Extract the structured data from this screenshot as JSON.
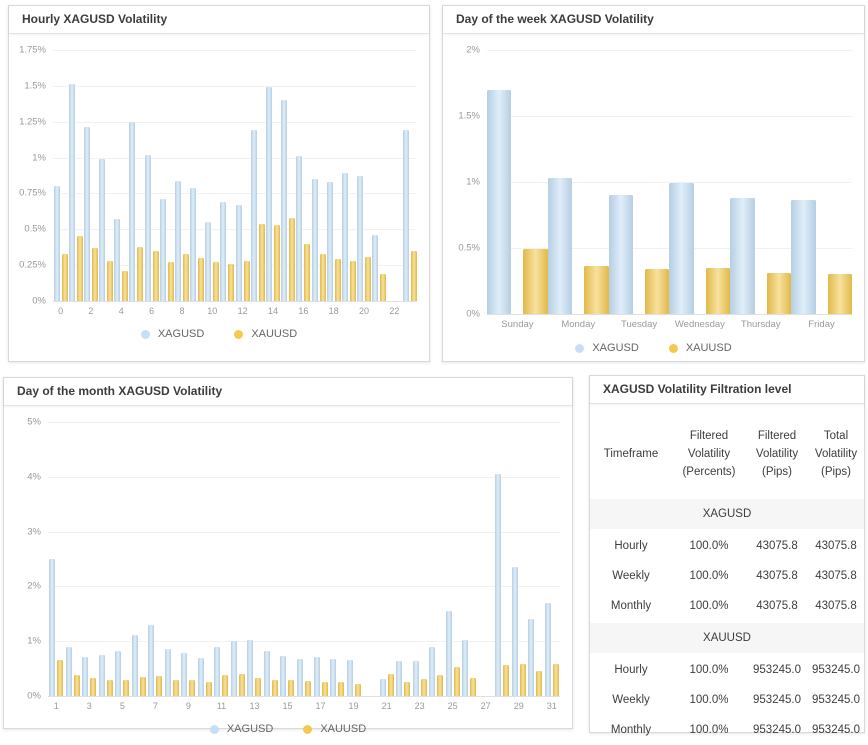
{
  "panels": {
    "hourly": {
      "title": "Hourly XAGUSD Volatility"
    },
    "weekday": {
      "title": "Day of the week XAGUSD Volatility"
    },
    "monthday": {
      "title": "Day of the month XAGUSD Volatility"
    },
    "table": {
      "title": "XAGUSD Volatility Filtration level"
    }
  },
  "colors": {
    "xagusd_bar": "#c5e0f6",
    "xauusd_bar": "#f3c94f",
    "gridline": "#f1f1f1",
    "axis_text": "#999999"
  },
  "chart_data": [
    {
      "type": "bar",
      "title": "Hourly XAGUSD Volatility",
      "categories": [
        "0",
        "1",
        "2",
        "3",
        "4",
        "5",
        "6",
        "7",
        "8",
        "9",
        "10",
        "11",
        "12",
        "13",
        "14",
        "15",
        "16",
        "17",
        "18",
        "19",
        "20",
        "21",
        "22",
        "23"
      ],
      "x_tick_interval": 2,
      "ylim": [
        0,
        1.75
      ],
      "y_ticks": [
        "1.75%",
        "1.5%",
        "1.25%",
        "1%",
        "0.75%",
        "0.5%",
        "0.25%",
        "0%"
      ],
      "grid": true,
      "legend_position": "bottom",
      "series": [
        {
          "name": "XAGUSD",
          "color": "#c5e0f6",
          "values": [
            0.8,
            1.51,
            1.21,
            0.99,
            0.57,
            1.25,
            1.02,
            0.71,
            0.84,
            0.79,
            0.55,
            0.69,
            0.67,
            1.19,
            1.49,
            1.4,
            1.01,
            0.85,
            0.83,
            0.89,
            0.87,
            0.46,
            0,
            1.19
          ]
        },
        {
          "name": "XAUUSD",
          "color": "#f3c94f",
          "values": [
            0.33,
            0.45,
            0.37,
            0.28,
            0.21,
            0.38,
            0.35,
            0.27,
            0.33,
            0.3,
            0.27,
            0.26,
            0.28,
            0.54,
            0.53,
            0.58,
            0.4,
            0.33,
            0.29,
            0.28,
            0.31,
            0.19,
            0,
            0.35
          ]
        }
      ]
    },
    {
      "type": "bar",
      "title": "Day of the week XAGUSD Volatility",
      "categories": [
        "Sunday",
        "Monday",
        "Tuesday",
        "Wednesday",
        "Thursday",
        "Friday"
      ],
      "x_tick_interval": 1,
      "ylim": [
        0,
        2
      ],
      "y_ticks": [
        "2%",
        "1.5%",
        "1%",
        "0.5%",
        "0%"
      ],
      "grid": true,
      "legend_position": "bottom",
      "series": [
        {
          "name": "XAGUSD",
          "color": "#c5e0f6",
          "values": [
            1.7,
            1.03,
            0.9,
            0.99,
            0.88,
            0.86
          ]
        },
        {
          "name": "XAUUSD",
          "color": "#f3c94f",
          "values": [
            0.49,
            0.36,
            0.34,
            0.35,
            0.31,
            0.3
          ]
        }
      ]
    },
    {
      "type": "bar",
      "title": "Day of the month XAGUSD Volatility",
      "categories": [
        "1",
        "2",
        "3",
        "4",
        "5",
        "6",
        "7",
        "8",
        "9",
        "10",
        "11",
        "12",
        "13",
        "14",
        "15",
        "16",
        "17",
        "18",
        "19",
        "20",
        "21",
        "22",
        "23",
        "24",
        "25",
        "26",
        "27",
        "28",
        "29",
        "30",
        "31"
      ],
      "x_tick_interval": 2,
      "ylim": [
        0,
        5
      ],
      "y_ticks": [
        "5%",
        "4%",
        "3%",
        "2%",
        "1%",
        "0%"
      ],
      "grid": true,
      "legend_position": "bottom",
      "series": [
        {
          "name": "XAGUSD",
          "color": "#c5e0f6",
          "values": [
            2.5,
            0.9,
            0.72,
            0.75,
            0.82,
            1.12,
            1.3,
            0.85,
            0.78,
            0.7,
            0.9,
            1.0,
            1.03,
            0.83,
            0.73,
            0.68,
            0.72,
            0.68,
            0.66,
            0,
            0.31,
            0.64,
            0.64,
            0.89,
            1.55,
            1.03,
            0,
            4.05,
            2.35,
            1.4,
            1.7
          ]
        },
        {
          "name": "XAUUSD",
          "color": "#f3c94f",
          "values": [
            0.65,
            0.38,
            0.33,
            0.3,
            0.3,
            0.35,
            0.37,
            0.3,
            0.29,
            0.26,
            0.38,
            0.41,
            0.32,
            0.3,
            0.3,
            0.27,
            0.26,
            0.25,
            0.22,
            0,
            0.4,
            0.26,
            0.31,
            0.39,
            0.53,
            0.32,
            0,
            0.56,
            0.59,
            0.45,
            0.59
          ]
        }
      ]
    }
  ],
  "filtration_table": {
    "columns": [
      "Timeframe",
      "Filtered Volatility (Percents)",
      "Filtered Volatility (Pips)",
      "Total Volatility (Pips)"
    ],
    "sections": [
      {
        "symbol": "XAGUSD",
        "rows": [
          [
            "Hourly",
            "100.0%",
            "43075.8",
            "43075.8"
          ],
          [
            "Weekly",
            "100.0%",
            "43075.8",
            "43075.8"
          ],
          [
            "Monthly",
            "100.0%",
            "43075.8",
            "43075.8"
          ]
        ]
      },
      {
        "symbol": "XAUUSD",
        "rows": [
          [
            "Hourly",
            "100.0%",
            "953245.0",
            "953245.0"
          ],
          [
            "Weekly",
            "100.0%",
            "953245.0",
            "953245.0"
          ],
          [
            "Monthly",
            "100.0%",
            "953245.0",
            "953245.0"
          ]
        ]
      }
    ]
  }
}
